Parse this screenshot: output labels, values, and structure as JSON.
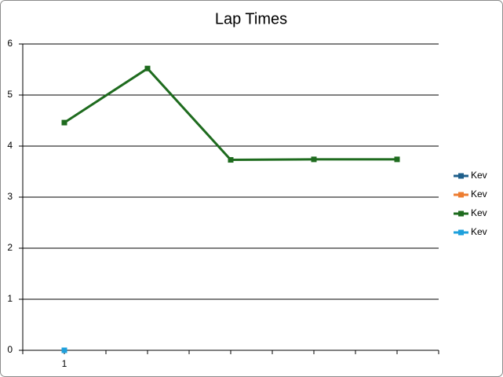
{
  "chart_data": {
    "type": "line",
    "title": "Lap Times",
    "categories": [
      "1",
      null,
      null,
      null,
      null
    ],
    "series": [
      {
        "name": "Kev",
        "color": "#1f5f8b",
        "values": [
          null,
          null,
          null,
          null,
          null
        ]
      },
      {
        "name": "Kev",
        "color": "#ed7d31",
        "values": [
          null,
          null,
          null,
          null,
          null
        ]
      },
      {
        "name": "Kev",
        "color": "#1e6b1e",
        "values": [
          4.46,
          5.52,
          3.73,
          3.74,
          3.74
        ]
      },
      {
        "name": "Kev",
        "color": "#1ea0dc",
        "values": [
          0,
          null,
          null,
          null,
          null
        ]
      }
    ],
    "ylim": [
      0,
      6
    ],
    "yticks": [
      0,
      1,
      2,
      3,
      4,
      5,
      6
    ],
    "grid": true,
    "legend": "right"
  }
}
